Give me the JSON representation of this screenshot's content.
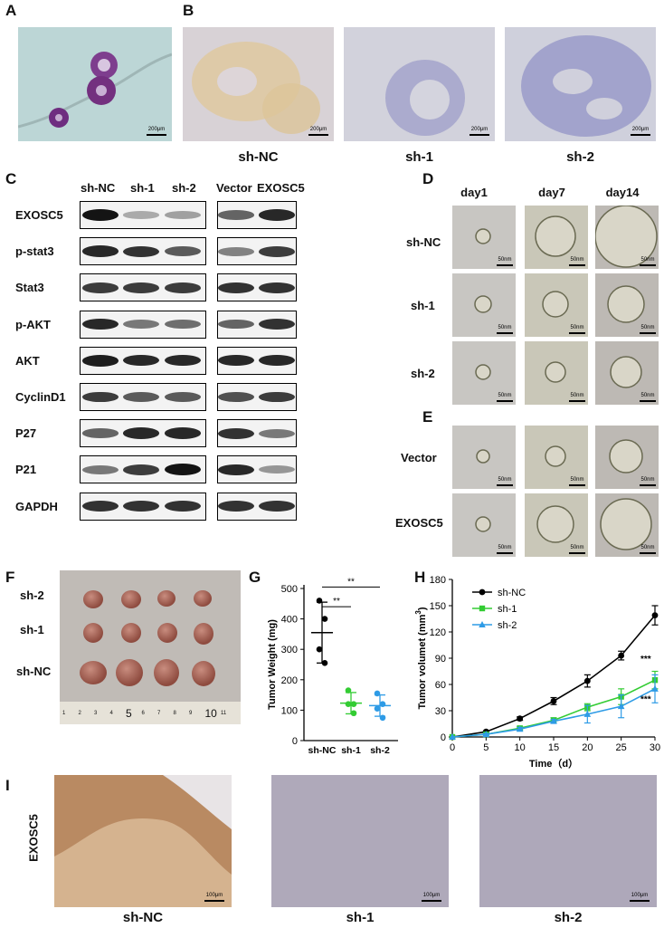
{
  "panels": {
    "A": "A",
    "B": "B",
    "C": "C",
    "D": "D",
    "E": "E",
    "F": "F",
    "G": "G",
    "H": "H",
    "I": "I"
  },
  "panel_a": {
    "scale": "200μm"
  },
  "panel_b": {
    "scale": "200μm",
    "captions": [
      "sh-NC",
      "sh-1",
      "sh-2"
    ]
  },
  "panel_c": {
    "lanes_left": [
      "sh-NC",
      "sh-1",
      "sh-2"
    ],
    "lanes_right": [
      "Vector",
      "EXOSC5"
    ],
    "rows": [
      "EXOSC5",
      "p-stat3",
      "Stat3",
      "p-AKT",
      "AKT",
      "CyclinD1",
      "P27",
      "P21",
      "GAPDH"
    ],
    "band_intensity_left": [
      [
        1.0,
        0.25,
        0.3
      ],
      [
        0.9,
        0.85,
        0.65
      ],
      [
        0.8,
        0.8,
        0.8
      ],
      [
        0.9,
        0.5,
        0.55
      ],
      [
        0.95,
        0.9,
        0.9
      ],
      [
        0.8,
        0.65,
        0.65
      ],
      [
        0.6,
        0.9,
        0.9
      ],
      [
        0.5,
        0.8,
        1.0
      ],
      [
        0.85,
        0.85,
        0.85
      ]
    ],
    "band_intensity_right": [
      [
        0.6,
        0.9
      ],
      [
        0.45,
        0.8
      ],
      [
        0.85,
        0.85
      ],
      [
        0.6,
        0.85
      ],
      [
        0.9,
        0.9
      ],
      [
        0.7,
        0.8
      ],
      [
        0.85,
        0.5
      ],
      [
        0.9,
        0.35
      ],
      [
        0.85,
        0.85
      ]
    ]
  },
  "panel_d": {
    "columns": [
      "day1",
      "day7",
      "day14"
    ],
    "rows": [
      "sh-NC",
      "sh-1",
      "sh-2"
    ],
    "scale": "50nm"
  },
  "panel_e": {
    "rows": [
      "Vector",
      "EXOSC5"
    ],
    "scale": "50nm"
  },
  "panel_f": {
    "rows": [
      "sh-2",
      "sh-1",
      "sh-NC"
    ],
    "ruler_numbers": [
      "1",
      "2",
      "3",
      "4",
      "5",
      "6",
      "7",
      "8",
      "9",
      "10",
      "11"
    ]
  },
  "panel_i": {
    "ylabel": "EXOSC5",
    "captions": [
      "sh-NC",
      "sh-1",
      "sh-2"
    ],
    "scale": "100μm"
  },
  "chart_data": [
    {
      "type": "scatter",
      "panel": "G",
      "ylabel": "Tumor Weight (mg)",
      "xlabel": "",
      "categories": [
        "sh-NC",
        "sh-1",
        "sh-2"
      ],
      "ylim": [
        0,
        500
      ],
      "yticks": [
        0,
        100,
        200,
        300,
        400,
        500
      ],
      "colors": [
        "#000000",
        "#33cc33",
        "#2e9be6"
      ],
      "series": [
        {
          "points": [
            460,
            400,
            300,
            255
          ],
          "mean": 355,
          "sd": 100
        },
        {
          "points": [
            165,
            120,
            120,
            90
          ],
          "mean": 123,
          "sd": 35
        },
        {
          "points": [
            155,
            120,
            105,
            75
          ],
          "mean": 115,
          "sd": 35
        }
      ],
      "significance": [
        {
          "from": "sh-NC",
          "to": "sh-1",
          "label": "**"
        },
        {
          "from": "sh-NC",
          "to": "sh-2",
          "label": "**"
        }
      ]
    },
    {
      "type": "line",
      "panel": "H",
      "ylabel_main": "Tumor volumet (mm",
      "ylabel_sup": "3",
      "ylabel_end": ")",
      "xlabel": "Time（d）",
      "xlim": [
        0,
        30
      ],
      "ylim": [
        0,
        180
      ],
      "xticks": [
        0,
        5,
        10,
        15,
        20,
        25,
        30
      ],
      "yticks": [
        0,
        30,
        60,
        90,
        120,
        150,
        180
      ],
      "x": [
        0,
        5,
        10,
        15,
        20,
        25,
        30
      ],
      "series": [
        {
          "name": "sh-NC",
          "color": "#000000",
          "marker": "circle",
          "values": [
            0,
            6,
            21,
            41,
            64,
            93,
            139
          ],
          "err": [
            0,
            1,
            2,
            4,
            7,
            5,
            11
          ]
        },
        {
          "name": "sh-1",
          "color": "#33cc33",
          "marker": "square",
          "values": [
            0,
            3,
            10,
            19,
            34,
            46,
            65
          ],
          "err": [
            0,
            1,
            2,
            3,
            4,
            9,
            10
          ]
        },
        {
          "name": "sh-2",
          "color": "#2e9be6",
          "marker": "triangle",
          "values": [
            0,
            3,
            9,
            18,
            26,
            35,
            55
          ],
          "err": [
            0,
            1,
            2,
            2,
            10,
            13,
            16
          ]
        }
      ],
      "annotations": [
        "***",
        "***"
      ]
    }
  ]
}
